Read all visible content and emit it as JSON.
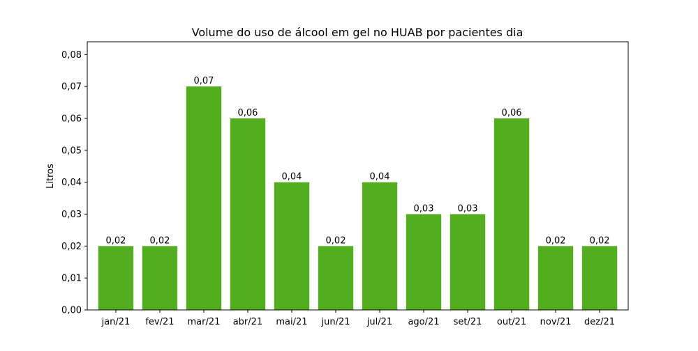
{
  "chart_data": {
    "type": "bar",
    "title": "Volume do uso de álcool em gel no HUAB por pacientes dia",
    "xlabel": "",
    "ylabel": "Litros",
    "categories": [
      "jan/21",
      "fev/21",
      "mar/21",
      "abr/21",
      "mai/21",
      "jun/21",
      "jul/21",
      "ago/21",
      "set/21",
      "out/21",
      "nov/21",
      "dez/21"
    ],
    "values": [
      0.02,
      0.02,
      0.07,
      0.06,
      0.04,
      0.02,
      0.04,
      0.03,
      0.03,
      0.06,
      0.02,
      0.02
    ],
    "value_labels": [
      "0,02",
      "0,02",
      "0,07",
      "0,06",
      "0,04",
      "0,02",
      "0,04",
      "0,03",
      "0,03",
      "0,06",
      "0,02",
      "0,02"
    ],
    "ylim": [
      0,
      0.084
    ],
    "yticks": [
      0.0,
      0.01,
      0.02,
      0.03,
      0.04,
      0.05,
      0.06,
      0.07,
      0.08
    ],
    "ytick_labels": [
      "0,00",
      "0,01",
      "0,02",
      "0,03",
      "0,04",
      "0,05",
      "0,06",
      "0,07",
      "0,08"
    ],
    "bar_color": "#52ad1f",
    "grid": false,
    "legend": "none"
  }
}
